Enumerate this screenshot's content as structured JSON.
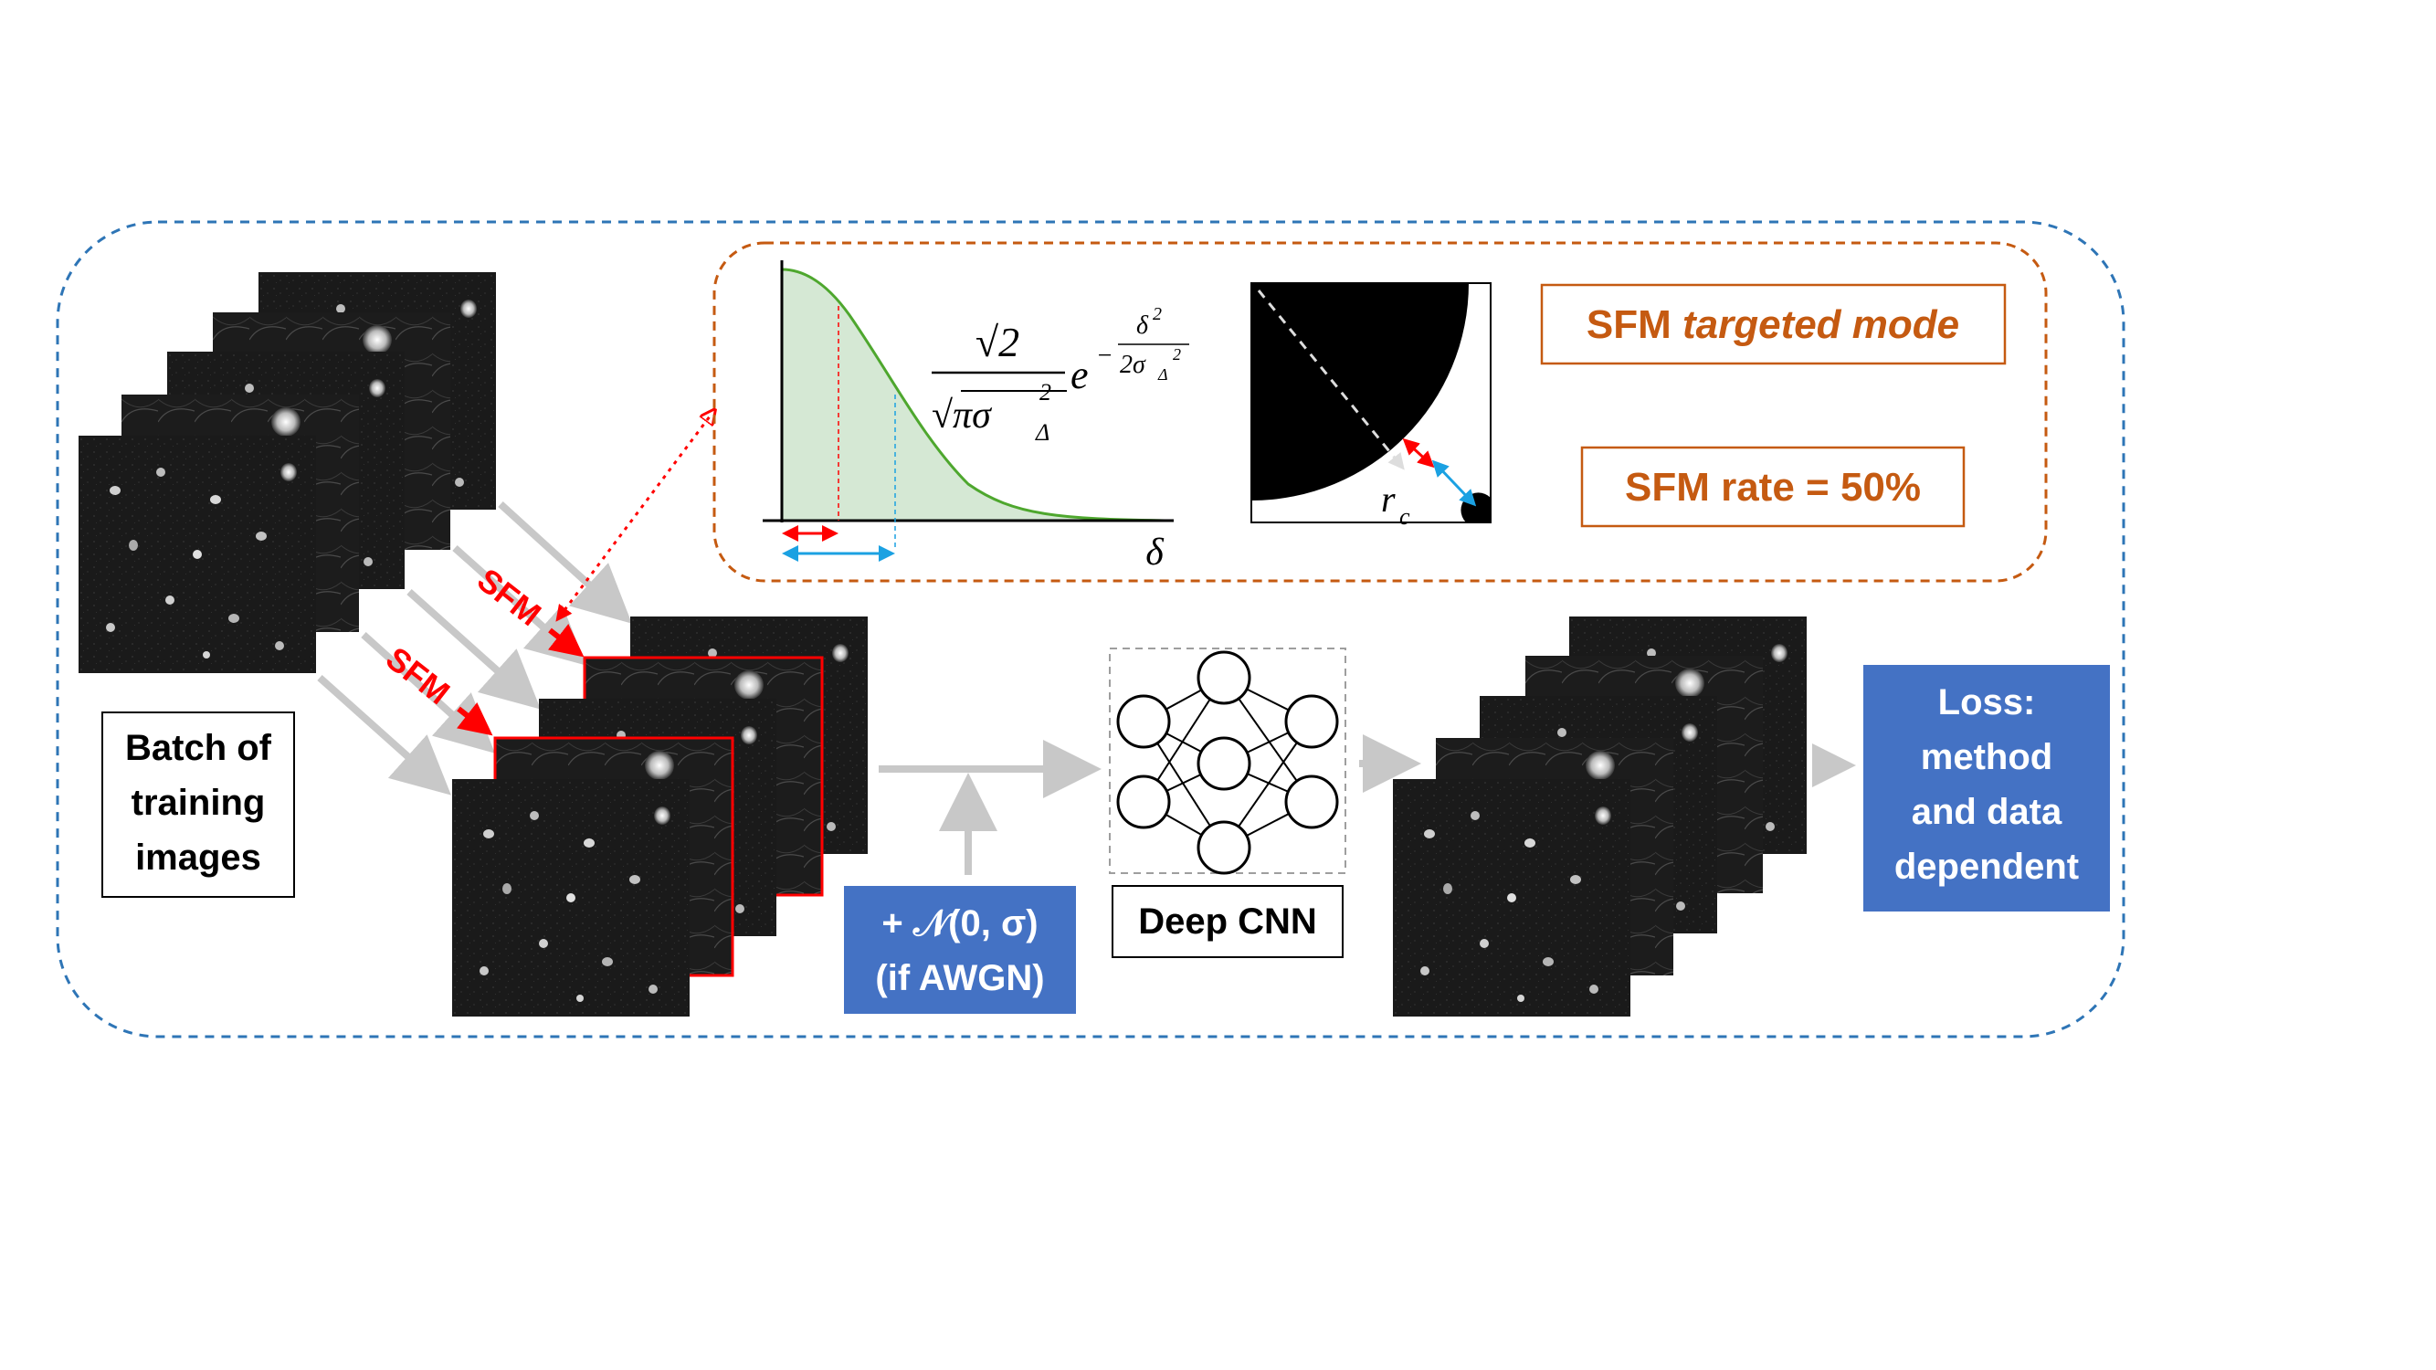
{
  "batch_label": {
    "line1": "Batch of",
    "line2": "training",
    "line3": "images"
  },
  "sfm_arrow_label": "SFM",
  "formula": {
    "numerator": "√2",
    "denominator": "√πσ",
    "denominator_sub": "Δ",
    "denominator_sup": "2",
    "base": "e",
    "exp_sign": "−",
    "exp_num": "δ",
    "exp_num_sup": "2",
    "exp_den": "2σ",
    "exp_den_sub": "Δ",
    "exp_den_sup": "2"
  },
  "graph_axis_label": "δ",
  "mask_radius_label": "r",
  "mask_radius_sub": "c",
  "targeted_mode": {
    "prefix": "SFM ",
    "italic": "targeted mode"
  },
  "sfm_rate": "SFM rate = 50%",
  "noise_box": {
    "line1": "+ 𝒩(0, σ)",
    "line2": "(if AWGN)"
  },
  "cnn_label": "Deep CNN",
  "loss_box": {
    "line1": "Loss:",
    "line2": "method",
    "line3": "and data",
    "line4": "dependent"
  },
  "colors": {
    "outer_border": "#2e75b6",
    "inset_border": "#c55a11",
    "accent_text": "#c55a11",
    "sfm_red": "#ff0000",
    "gaussian_fill": "#d5e8d4",
    "gaussian_line": "#4ea72e",
    "blue_box": "#4472c4",
    "cyan_arrow": "#1ba1e2",
    "gray_arrow": "#c8c8c8"
  }
}
